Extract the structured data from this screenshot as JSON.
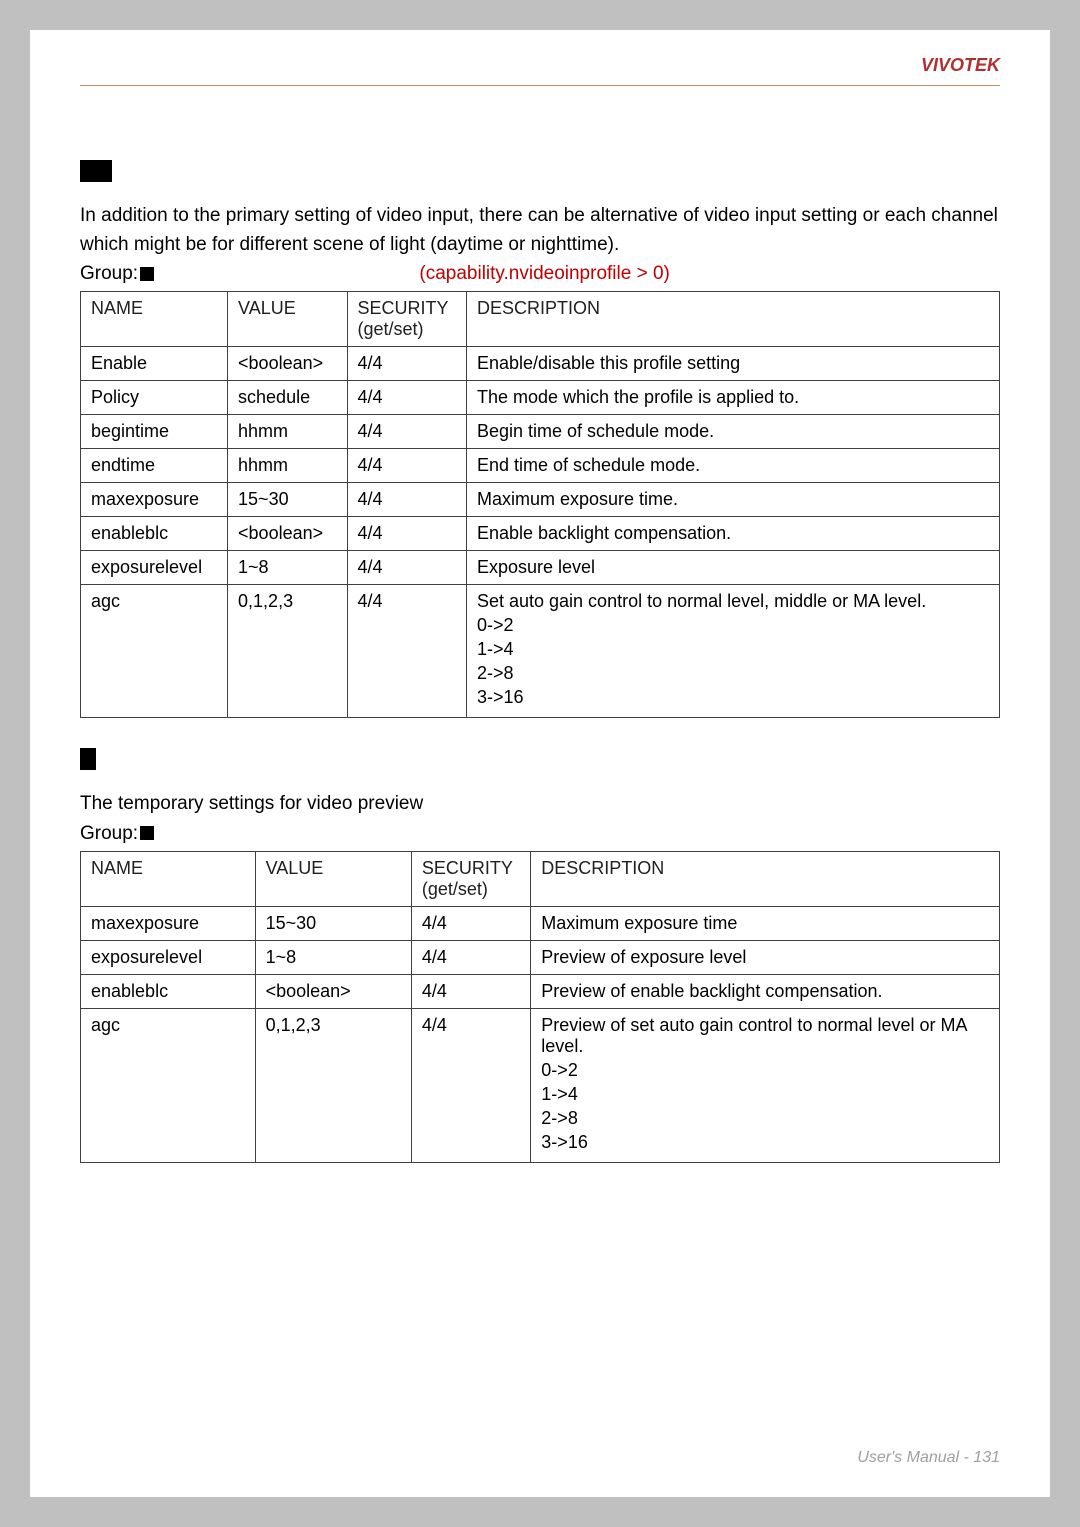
{
  "brand": "VIVOTEK",
  "footer": "User's Manual - 131",
  "section1": {
    "para": "In addition to the primary setting of video input, there can be alternative of video input setting or each channel which might be for different scene of light (daytime or nighttime).",
    "groupLabel": "Group:",
    "capability": "(capability.nvideoinprofile > 0)"
  },
  "table1": {
    "headers": [
      "NAME",
      "VALUE",
      "SECURITY (get/set)",
      "DESCRIPTION"
    ],
    "rows": [
      {
        "name": "Enable",
        "value": "<boolean>",
        "sec": "4/4",
        "desc": "Enable/disable this profile setting"
      },
      {
        "name": "Policy",
        "value": "schedule",
        "sec": "4/4",
        "desc": "The mode which the profile is applied to."
      },
      {
        "name": "begintime",
        "value": "hhmm",
        "sec": "4/4",
        "desc": "Begin time of schedule mode."
      },
      {
        "name": "endtime",
        "value": "hhmm",
        "sec": "4/4",
        "desc": "End time of schedule mode."
      },
      {
        "name": "maxexposure",
        "value": "15~30",
        "sec": "4/4",
        "desc": "Maximum exposure time."
      },
      {
        "name": "enableblc",
        "value": "<boolean>",
        "sec": "4/4",
        "desc": "Enable backlight compensation."
      },
      {
        "name": "exposurelevel",
        "value": "1~8",
        "sec": "4/4",
        "desc": "Exposure level"
      },
      {
        "name": "agc",
        "value": "0,1,2,3",
        "sec": "4/4",
        "desc": [
          "Set auto gain control to normal level, middle or MA level.",
          "0->2",
          "1->4",
          "2->8",
          "3->16"
        ]
      }
    ]
  },
  "section2": {
    "para": "The temporary settings for video preview",
    "groupLabel": "Group:"
  },
  "table2": {
    "headers": [
      "NAME",
      "VALUE",
      "SECURITY (get/set)",
      "DESCRIPTION"
    ],
    "rows": [
      {
        "name": "maxexposure",
        "value": "15~30",
        "sec": "4/4",
        "desc": "Maximum exposure time"
      },
      {
        "name": "exposurelevel",
        "value": "1~8",
        "sec": "4/4",
        "desc": "Preview of exposure level"
      },
      {
        "name": "enableblc",
        "value": "<boolean>",
        "sec": "4/4",
        "desc": "Preview of enable backlight compensation."
      },
      {
        "name": "agc",
        "value": "0,1,2,3",
        "sec": "4/4",
        "desc": [
          "Preview of set auto gain control to normal level or MA level.",
          "0->2",
          "1->4",
          "2->8",
          "3->16"
        ]
      }
    ]
  },
  "colors": {
    "page_bg": "#c0c0c0",
    "paper_bg": "#ffffff",
    "brand": "#b03030",
    "rule": "#c09060",
    "capability": "#c00000",
    "border": "#404040",
    "footer": "#a0a0a0"
  }
}
